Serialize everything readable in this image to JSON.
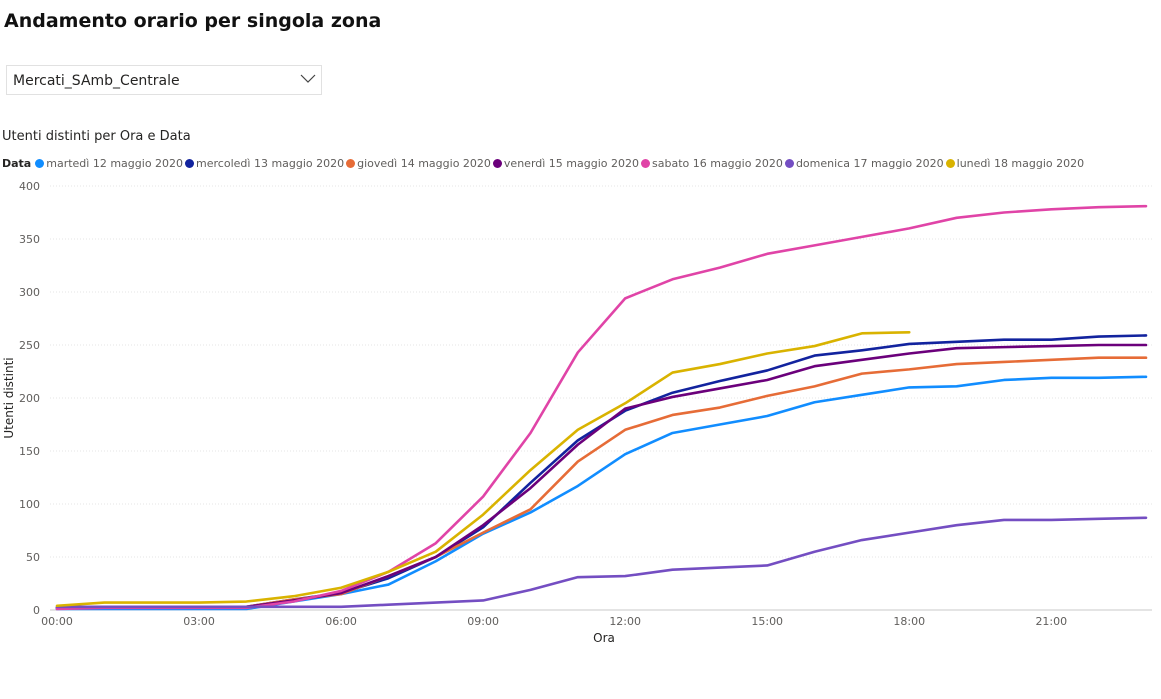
{
  "page": {
    "title": "Andamento orario per singola zona"
  },
  "slicer": {
    "selected": "Mercati_SAmb_Centrale",
    "icon": "chevron-down-icon"
  },
  "chart_title": "Utenti distinti per Ora e Data",
  "legend": {
    "title": "Data",
    "position": "top-left"
  },
  "chart_data": {
    "type": "line",
    "xlabel": "Ora",
    "ylabel": "Utenti distinti",
    "x": [
      0,
      1,
      2,
      3,
      4,
      5,
      6,
      7,
      8,
      9,
      10,
      11,
      12,
      13,
      14,
      15,
      16,
      17,
      18,
      19,
      20,
      21,
      22,
      23
    ],
    "x_ticks": [
      "00:00",
      "03:00",
      "06:00",
      "09:00",
      "12:00",
      "15:00",
      "18:00",
      "21:00"
    ],
    "x_tick_values": [
      0,
      3,
      6,
      9,
      12,
      15,
      18,
      21
    ],
    "ylim": [
      0,
      400
    ],
    "y_ticks": [
      0,
      50,
      100,
      150,
      200,
      250,
      300,
      350,
      400
    ],
    "grid": true,
    "series": [
      {
        "name": "martedì 12 maggio 2020",
        "color": "#118dff",
        "values": [
          1,
          1,
          1,
          1,
          1,
          8,
          15,
          24,
          46,
          72,
          92,
          117,
          147,
          167,
          175,
          183,
          196,
          203,
          210,
          211,
          217,
          219,
          219,
          220
        ]
      },
      {
        "name": "mercoledì 13 maggio 2020",
        "color": "#12239e",
        "values": [
          2,
          3,
          3,
          3,
          3,
          10,
          16,
          30,
          50,
          78,
          120,
          160,
          188,
          205,
          216,
          226,
          240,
          245,
          251,
          253,
          255,
          255,
          258,
          259
        ]
      },
      {
        "name": "giovedì 14 maggio 2020",
        "color": "#e66c37",
        "values": [
          2,
          3,
          3,
          3,
          3,
          10,
          15,
          32,
          50,
          73,
          95,
          140,
          170,
          184,
          191,
          202,
          211,
          223,
          227,
          232,
          234,
          236,
          238,
          238
        ]
      },
      {
        "name": "venerdì 15 maggio 2020",
        "color": "#6b007b",
        "values": [
          2,
          3,
          3,
          3,
          3,
          9,
          16,
          32,
          50,
          80,
          115,
          156,
          190,
          201,
          209,
          217,
          230,
          236,
          242,
          247,
          248,
          249,
          250,
          250
        ]
      },
      {
        "name": "sabato 16 maggio 2020",
        "color": "#e044a7",
        "values": [
          1,
          2,
          2,
          2,
          2,
          8,
          18,
          36,
          63,
          107,
          167,
          243,
          294,
          312,
          323,
          336,
          344,
          352,
          360,
          370,
          375,
          378,
          380,
          381
        ]
      },
      {
        "name": "domenica 17 maggio 2020",
        "color": "#744ec2",
        "values": [
          3,
          3,
          3,
          3,
          3,
          3,
          3,
          5,
          7,
          9,
          19,
          31,
          32,
          38,
          40,
          42,
          55,
          66,
          73,
          80,
          85,
          85,
          86,
          87
        ]
      },
      {
        "name": "lunedì 18 maggio 2020",
        "color": "#d9b300",
        "x": [
          0,
          1,
          2,
          3,
          4,
          5,
          6,
          7,
          8,
          9,
          10,
          11,
          12,
          13,
          14,
          15,
          16,
          17,
          18
        ],
        "values": [
          4,
          7,
          7,
          7,
          8,
          13,
          21,
          36,
          55,
          90,
          132,
          170,
          195,
          224,
          232,
          242,
          249,
          261,
          262
        ]
      }
    ]
  }
}
